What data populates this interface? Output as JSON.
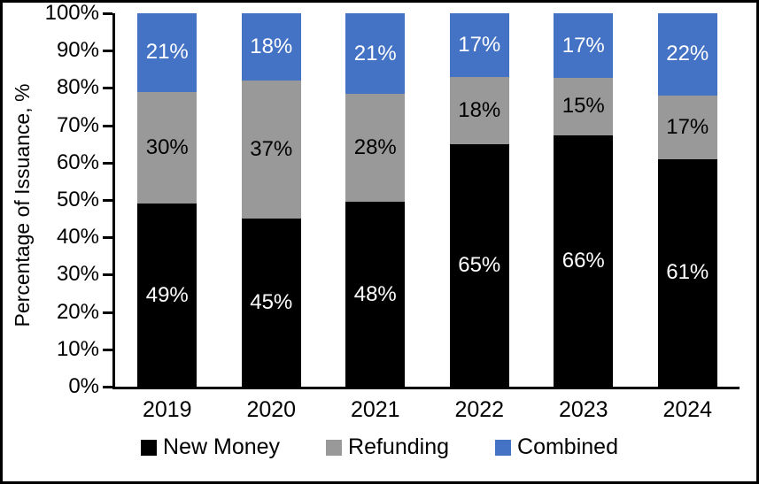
{
  "chart_data": {
    "type": "bar",
    "stacked": true,
    "categories": [
      "2019",
      "2020",
      "2021",
      "2022",
      "2023",
      "2024"
    ],
    "series": [
      {
        "name": "New Money",
        "color": "#000000",
        "label_color": "#ffffff",
        "values": [
          49,
          45,
          48,
          65,
          66,
          61
        ],
        "labels": [
          "49%",
          "45%",
          "48%",
          "65%",
          "66%",
          "61%"
        ]
      },
      {
        "name": "Refunding",
        "color": "#999999",
        "label_color": "#000000",
        "values": [
          30,
          37,
          28,
          18,
          15,
          17
        ],
        "labels": [
          "30%",
          "37%",
          "28%",
          "18%",
          "15%",
          "17%"
        ]
      },
      {
        "name": "Combined",
        "color": "#4472C4",
        "label_color": "#ffffff",
        "values": [
          21,
          18,
          21,
          17,
          17,
          22
        ],
        "labels": [
          "21%",
          "18%",
          "21%",
          "17%",
          "17%",
          "22%"
        ]
      }
    ],
    "title": "",
    "xlabel": "",
    "ylabel": "Percentage of Issuance, %",
    "ylim": [
      0,
      100
    ],
    "y_ticks": [
      "0%",
      "10%",
      "20%",
      "30%",
      "40%",
      "50%",
      "60%",
      "70%",
      "80%",
      "90%",
      "100%"
    ],
    "grid": false,
    "legend_position": "bottom",
    "axis_color": "#000000",
    "background_color": "#ffffff"
  }
}
